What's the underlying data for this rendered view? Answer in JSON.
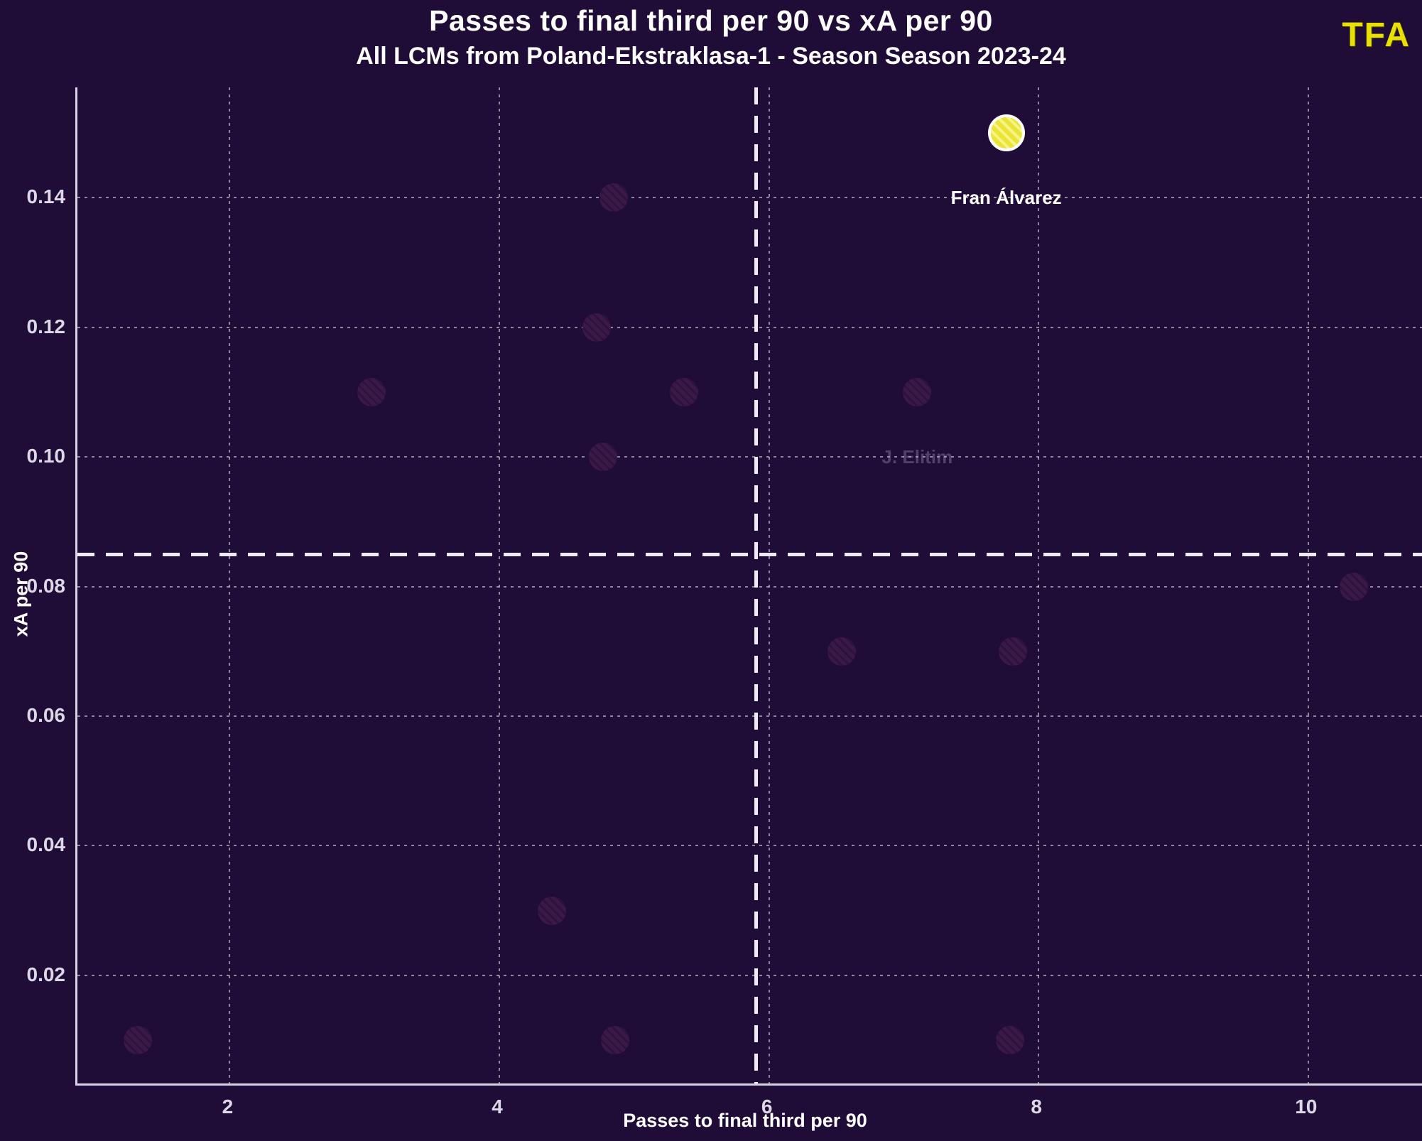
{
  "header": {
    "title": "Passes to final third per 90 vs xA per 90",
    "subtitle": "All LCMs from Poland-Ekstraklasa-1 - Season Season 2023-24",
    "logo_text": "TFA"
  },
  "colors": {
    "background": "#1f0d38",
    "point_fill": "#3a1946",
    "point_hatch": "#2d1240",
    "highlight_fill": "#e9e435",
    "highlight_border": "#ffffff",
    "logo": "#e8e000",
    "grid": "rgba(255,255,255,0.50)",
    "mean_line": "rgba(248,246,255,0.95)",
    "tick_text": "#dcd8e6",
    "title_text": "#ffffff",
    "muted_label": "rgba(185,175,210,0.32)"
  },
  "chart_data": {
    "type": "scatter",
    "title": "Passes to final third per 90 vs xA per 90",
    "subtitle": "All LCMs from Poland-Ekstraklasa-1 - Season Season 2023-24",
    "xlabel": "Passes to final third per 90",
    "ylabel": "xA per 90",
    "xlim": [
      0.87,
      10.86
    ],
    "ylim": [
      0.003,
      0.157
    ],
    "xticks": [
      2,
      4,
      6,
      8,
      10
    ],
    "yticks": [
      0.02,
      0.04,
      0.06,
      0.08,
      0.1,
      0.12,
      0.14
    ],
    "grid": "dotted",
    "legend_position": "none",
    "mean_lines": {
      "x": 5.9,
      "y": 0.085
    },
    "points": [
      {
        "x": 7.76,
        "y": 0.15,
        "label": "Fran Álvarez",
        "highlight": true
      },
      {
        "x": 4.85,
        "y": 0.14
      },
      {
        "x": 4.72,
        "y": 0.12
      },
      {
        "x": 3.05,
        "y": 0.11
      },
      {
        "x": 5.37,
        "y": 0.11
      },
      {
        "x": 7.1,
        "y": 0.11,
        "label": "J. Elitim",
        "label_muted": true
      },
      {
        "x": 4.77,
        "y": 0.1
      },
      {
        "x": 10.34,
        "y": 0.08
      },
      {
        "x": 6.54,
        "y": 0.07
      },
      {
        "x": 7.81,
        "y": 0.07
      },
      {
        "x": 4.39,
        "y": 0.03
      },
      {
        "x": 1.32,
        "y": 0.01
      },
      {
        "x": 4.86,
        "y": 0.01
      },
      {
        "x": 7.79,
        "y": 0.01
      }
    ]
  }
}
